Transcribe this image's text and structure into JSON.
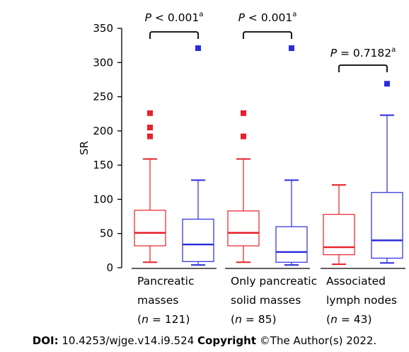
{
  "chart_data": {
    "type": "box",
    "ylabel": "SR",
    "ylim": [
      0,
      350
    ],
    "yticks": [
      "0",
      "50",
      "100",
      "150",
      "200",
      "250",
      "300",
      "350"
    ],
    "groups": [
      {
        "label_lines": [
          "Pancreatic",
          "masses",
          "(n = 121)"
        ],
        "pvalue": {
          "prefix": "P",
          "text": "< 0.001",
          "sup": "a"
        },
        "boxes": [
          {
            "color": "#e8202a",
            "whisker_low": 8,
            "q1": 32,
            "median": 51,
            "q3": 84,
            "whisker_high": 159,
            "outliers": [
              226,
              205,
              192
            ]
          },
          {
            "color": "#2b2bdc",
            "whisker_low": 4,
            "q1": 9,
            "median": 34,
            "q3": 71,
            "whisker_high": 128,
            "outliers": [
              321
            ]
          }
        ]
      },
      {
        "label_lines": [
          "Only pancreatic",
          "solid masses",
          "(n = 85)"
        ],
        "pvalue": {
          "prefix": "P",
          "text": "< 0.001",
          "sup": "a"
        },
        "boxes": [
          {
            "color": "#e8202a",
            "whisker_low": 8,
            "q1": 32,
            "median": 51,
            "q3": 83,
            "whisker_high": 159,
            "outliers": [
              226,
              192
            ]
          },
          {
            "color": "#2b2bdc",
            "whisker_low": 4,
            "q1": 8,
            "median": 23,
            "q3": 60,
            "whisker_high": 128,
            "outliers": [
              321
            ]
          }
        ]
      },
      {
        "label_lines": [
          "Associated",
          "lymph nodes",
          "(n = 43)"
        ],
        "pvalue": {
          "prefix": "P",
          "text": "= 0.7182",
          "sup": "a"
        },
        "boxes": [
          {
            "color": "#e8202a",
            "whisker_low": 5,
            "q1": 19,
            "median": 30,
            "q3": 78,
            "whisker_high": 121,
            "outliers": []
          },
          {
            "color": "#2b2bdc",
            "whisker_low": 7,
            "q1": 14,
            "median": 40,
            "q3": 110,
            "whisker_high": 223,
            "outliers": [
              269
            ]
          }
        ]
      }
    ]
  },
  "footer": {
    "doi_label": "DOI:",
    "doi_value": "10.4253/wjge.v14.i9.524",
    "copyright_label": "Copyright",
    "copyright_text": "©The Author(s) 2022."
  }
}
